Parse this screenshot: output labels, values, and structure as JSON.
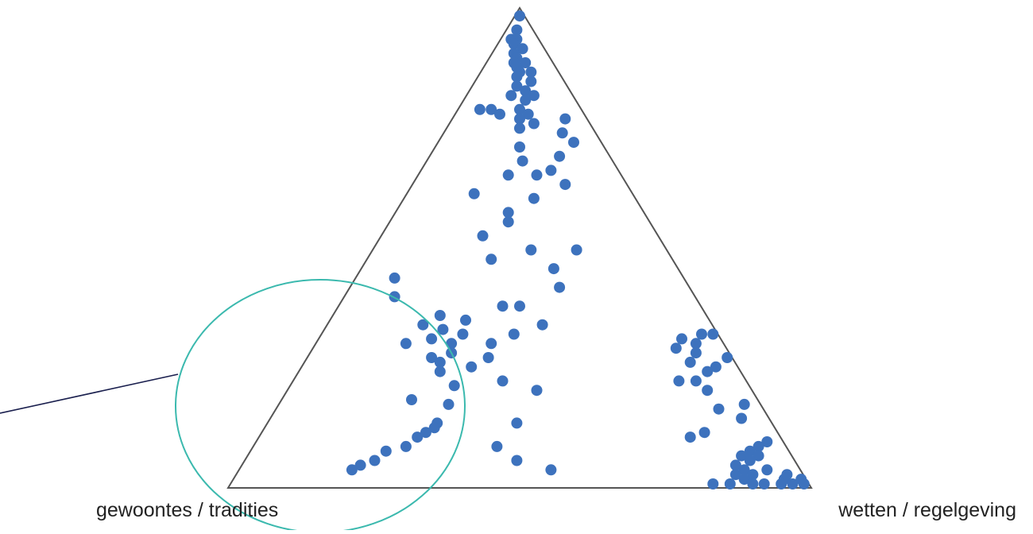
{
  "chart_data": {
    "type": "scatter",
    "subtype": "ternary",
    "vertex_labels": {
      "top": "",
      "bottom_left": "gewoontes / tradities",
      "bottom_right": "wetten / regelgeving"
    },
    "point_color": "#3d72bd",
    "triangle_color": "#555555",
    "highlight_color": "#3bb9ae",
    "pointer_color": "#1a1f4e",
    "legend": "none",
    "grid": false,
    "note": "values are barycentric weights toward [top, bottom_left, bottom_right]",
    "points": [
      [
        1.0,
        0.0,
        0.0
      ],
      [
        0.97,
        0.02,
        0.01
      ],
      [
        0.95,
        0.04,
        0.01
      ],
      [
        0.95,
        0.03,
        0.02
      ],
      [
        0.94,
        0.04,
        0.02
      ],
      [
        0.93,
        0.03,
        0.04
      ],
      [
        0.92,
        0.05,
        0.03
      ],
      [
        0.91,
        0.05,
        0.04
      ],
      [
        0.9,
        0.06,
        0.04
      ],
      [
        0.9,
        0.04,
        0.06
      ],
      [
        0.89,
        0.06,
        0.05
      ],
      [
        0.88,
        0.06,
        0.06
      ],
      [
        0.88,
        0.04,
        0.08
      ],
      [
        0.87,
        0.07,
        0.06
      ],
      [
        0.86,
        0.05,
        0.09
      ],
      [
        0.85,
        0.08,
        0.07
      ],
      [
        0.84,
        0.07,
        0.09
      ],
      [
        0.83,
        0.06,
        0.11
      ],
      [
        0.82,
        0.08,
        0.1
      ],
      [
        0.83,
        0.1,
        0.07
      ],
      [
        0.8,
        0.1,
        0.1
      ],
      [
        0.79,
        0.09,
        0.12
      ],
      [
        0.78,
        0.11,
        0.11
      ],
      [
        0.77,
        0.09,
        0.14
      ],
      [
        0.76,
        0.12,
        0.12
      ],
      [
        0.8,
        0.17,
        0.03
      ],
      [
        0.8,
        0.15,
        0.05
      ],
      [
        0.79,
        0.14,
        0.07
      ],
      [
        0.78,
        0.03,
        0.19
      ],
      [
        0.75,
        0.05,
        0.2
      ],
      [
        0.73,
        0.04,
        0.23
      ],
      [
        0.72,
        0.14,
        0.14
      ],
      [
        0.7,
        0.08,
        0.22
      ],
      [
        0.69,
        0.15,
        0.16
      ],
      [
        0.67,
        0.11,
        0.22
      ],
      [
        0.66,
        0.19,
        0.15
      ],
      [
        0.66,
        0.14,
        0.2
      ],
      [
        0.64,
        0.1,
        0.26
      ],
      [
        0.61,
        0.17,
        0.22
      ],
      [
        0.56,
        0.24,
        0.2
      ],
      [
        0.53,
        0.3,
        0.17
      ],
      [
        0.5,
        0.15,
        0.35
      ],
      [
        0.5,
        0.23,
        0.27
      ],
      [
        0.48,
        0.31,
        0.21
      ],
      [
        0.46,
        0.21,
        0.33
      ],
      [
        0.42,
        0.22,
        0.36
      ],
      [
        0.38,
        0.34,
        0.28
      ],
      [
        0.38,
        0.31,
        0.31
      ],
      [
        0.34,
        0.29,
        0.37
      ],
      [
        0.32,
        0.35,
        0.33
      ],
      [
        0.3,
        0.4,
        0.3
      ],
      [
        0.27,
        0.42,
        0.31
      ],
      [
        0.36,
        0.46,
        0.18
      ],
      [
        0.35,
        0.42,
        0.23
      ],
      [
        0.34,
        0.5,
        0.16
      ],
      [
        0.33,
        0.47,
        0.2
      ],
      [
        0.32,
        0.44,
        0.24
      ],
      [
        0.31,
        0.5,
        0.19
      ],
      [
        0.3,
        0.47,
        0.23
      ],
      [
        0.3,
        0.55,
        0.15
      ],
      [
        0.28,
        0.48,
        0.24
      ],
      [
        0.27,
        0.52,
        0.21
      ],
      [
        0.26,
        0.51,
        0.23
      ],
      [
        0.25,
        0.46,
        0.29
      ],
      [
        0.24,
        0.52,
        0.24
      ],
      [
        0.21,
        0.51,
        0.28
      ],
      [
        0.18,
        0.6,
        0.22
      ],
      [
        0.17,
        0.54,
        0.29
      ],
      [
        0.13,
        0.58,
        0.29
      ],
      [
        0.12,
        0.59,
        0.29
      ],
      [
        0.11,
        0.61,
        0.28
      ],
      [
        0.1,
        0.63,
        0.27
      ],
      [
        0.08,
        0.66,
        0.26
      ],
      [
        0.07,
        0.7,
        0.23
      ],
      [
        0.05,
        0.73,
        0.22
      ],
      [
        0.04,
        0.76,
        0.2
      ],
      [
        0.03,
        0.78,
        0.19
      ],
      [
        0.32,
        0.02,
        0.66
      ],
      [
        0.32,
        0.0,
        0.68
      ],
      [
        0.31,
        0.06,
        0.63
      ],
      [
        0.3,
        0.04,
        0.66
      ],
      [
        0.29,
        0.08,
        0.63
      ],
      [
        0.28,
        0.05,
        0.67
      ],
      [
        0.27,
        0.0,
        0.73
      ],
      [
        0.26,
        0.07,
        0.67
      ],
      [
        0.25,
        0.03,
        0.72
      ],
      [
        0.24,
        0.05,
        0.71
      ],
      [
        0.22,
        0.11,
        0.67
      ],
      [
        0.22,
        0.08,
        0.7
      ],
      [
        0.2,
        0.07,
        0.73
      ],
      [
        0.17,
        0.02,
        0.81
      ],
      [
        0.16,
        0.07,
        0.77
      ],
      [
        0.14,
        0.04,
        0.82
      ],
      [
        0.11,
        0.12,
        0.77
      ],
      [
        0.1,
        0.15,
        0.75
      ],
      [
        0.09,
        0.02,
        0.89
      ],
      [
        0.08,
        0.04,
        0.88
      ],
      [
        0.07,
        0.06,
        0.87
      ],
      [
        0.06,
        0.08,
        0.86
      ],
      [
        0.06,
        0.05,
        0.89
      ],
      [
        0.05,
        0.07,
        0.88
      ],
      [
        0.04,
        0.1,
        0.86
      ],
      [
        0.03,
        0.05,
        0.92
      ],
      [
        0.03,
        0.09,
        0.88
      ],
      [
        0.02,
        0.11,
        0.87
      ],
      [
        0.02,
        0.08,
        0.9
      ],
      [
        0.01,
        0.1,
        0.89
      ],
      [
        0.0,
        0.13,
        0.87
      ],
      [
        0.0,
        0.16,
        0.84
      ],
      [
        0.0,
        0.09,
        0.91
      ],
      [
        0.0,
        0.07,
        0.93
      ],
      [
        0.0,
        0.04,
        0.96
      ],
      [
        0.01,
        0.03,
        0.96
      ],
      [
        0.02,
        0.02,
        0.96
      ],
      [
        0.01,
        0.0,
        0.99
      ],
      [
        0.0,
        0.02,
        0.98
      ],
      [
        0.0,
        0.0,
        1.0
      ],
      [
        0.13,
        0.44,
        0.43
      ],
      [
        0.08,
        0.5,
        0.42
      ],
      [
        0.03,
        0.43,
        0.54
      ],
      [
        0.05,
        0.48,
        0.47
      ],
      [
        0.22,
        0.42,
        0.36
      ],
      [
        0.2,
        0.37,
        0.43
      ],
      [
        0.4,
        0.52,
        0.08
      ],
      [
        0.44,
        0.5,
        0.06
      ],
      [
        0.58,
        0.23,
        0.19
      ],
      [
        0.62,
        0.27,
        0.11
      ]
    ]
  }
}
